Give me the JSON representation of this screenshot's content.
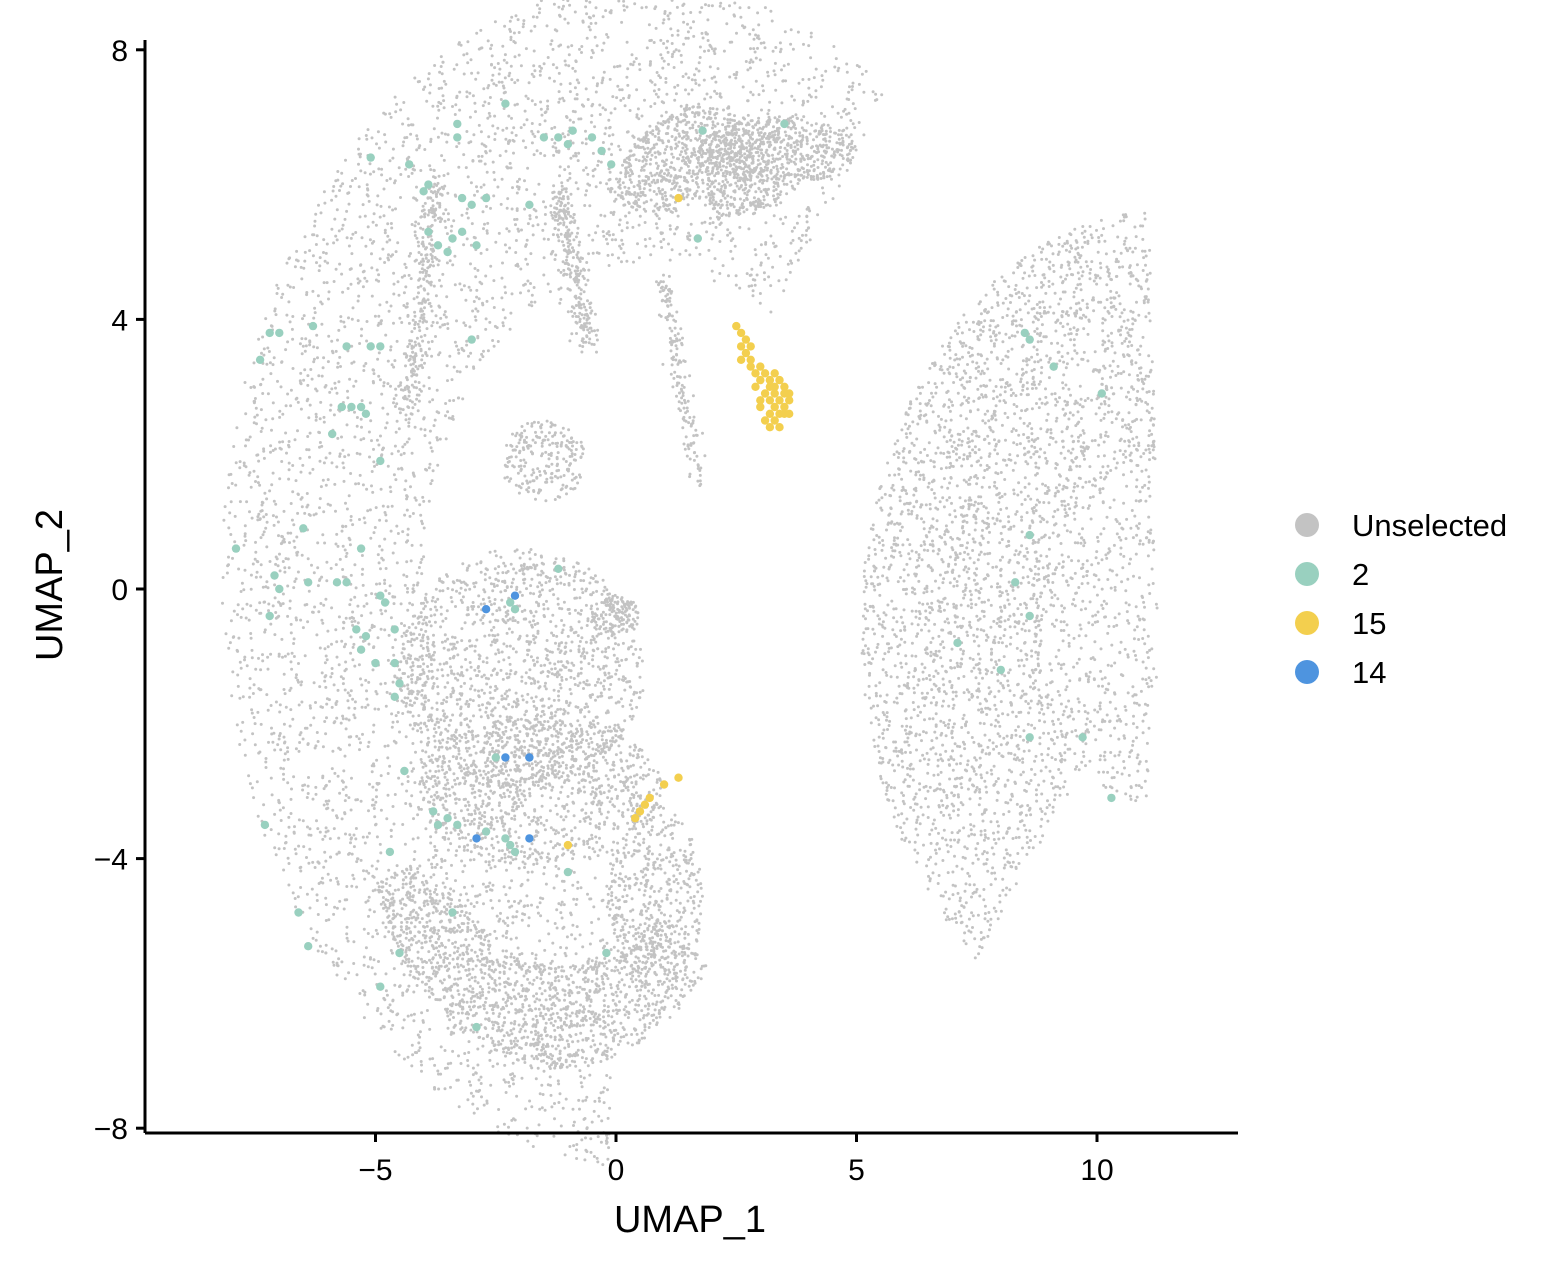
{
  "chart_data": {
    "type": "scatter",
    "title": "",
    "xlabel": "UMAP_1",
    "ylabel": "UMAP_2",
    "xlim": [
      -9.8,
      12.9
    ],
    "ylim": [
      -8,
      8.2
    ],
    "xticks": [
      -5,
      0,
      5,
      10
    ],
    "xtick_labels": [
      "−5",
      "0",
      "5",
      "10"
    ],
    "yticks": [
      -8,
      -4,
      0,
      4,
      8
    ],
    "ytick_labels": [
      "−8",
      "−4",
      "0",
      "4",
      "8"
    ],
    "grid": false,
    "legend_position": "right",
    "series": [
      {
        "name": "Unselected",
        "color": "#c3c3c3",
        "description_regions": [
          {
            "kind": "arc",
            "cx": 0.6,
            "cy": 0.2,
            "r_min": 4.6,
            "r_max": 8.8,
            "angle_from": 55,
            "angle_to": 265,
            "n": 4200
          },
          {
            "kind": "blob",
            "cx": -2.0,
            "cy": -1.2,
            "rx": 2.6,
            "ry": 1.8,
            "n": 1400
          },
          {
            "kind": "blob",
            "cx": -1.6,
            "cy": -3.0,
            "rx": 2.6,
            "ry": 1.1,
            "n": 900
          },
          {
            "kind": "crescent",
            "cx": -1.2,
            "cy": -3.0,
            "r_min": 2.6,
            "r_max": 4.1,
            "angle_from": 200,
            "angle_to": 320,
            "n": 1300
          },
          {
            "kind": "blob",
            "cx": 0.8,
            "cy": -4.6,
            "rx": 1.0,
            "ry": 1.4,
            "n": 450
          },
          {
            "kind": "arc",
            "cx": 1.7,
            "cy": 5.4,
            "r_min": 0.4,
            "r_max": 1.8,
            "angle_from": 10,
            "angle_to": 170,
            "n": 800
          },
          {
            "kind": "blob",
            "cx": 3.4,
            "cy": 6.5,
            "rx": 1.6,
            "ry": 0.5,
            "n": 500
          },
          {
            "kind": "blob",
            "cx": -1.5,
            "cy": 1.9,
            "rx": 0.9,
            "ry": 0.6,
            "n": 220
          },
          {
            "kind": "stripe",
            "x0": -1.2,
            "y0": 6.0,
            "x1": -0.6,
            "y1": 3.6,
            "w": 0.35,
            "n": 250
          },
          {
            "kind": "stripe",
            "x0": 1.0,
            "y0": 4.6,
            "x1": 1.7,
            "y1": 1.6,
            "w": 0.25,
            "n": 160
          },
          {
            "kind": "stripe",
            "x0": -3.7,
            "y0": 6.2,
            "x1": -4.3,
            "y1": 2.6,
            "w": 0.35,
            "n": 260
          },
          {
            "kind": "blob",
            "cx": 0.0,
            "cy": -0.4,
            "rx": 0.5,
            "ry": 0.3,
            "n": 120
          },
          {
            "kind": "fan",
            "cx": 11.3,
            "cy": -0.6,
            "r_min": 2.5,
            "r_max": 6.2,
            "angle_from": 92,
            "angle_to": 232,
            "n": 3000
          },
          {
            "kind": "fan",
            "cx": 11.3,
            "cy": -0.6,
            "r_min": 0.0,
            "r_max": 2.6,
            "angle_from": 95,
            "angle_to": 265,
            "n": 500
          }
        ]
      },
      {
        "name": "2",
        "color": "#99d0bf",
        "points": [
          [
            -5.1,
            6.4
          ],
          [
            -4.3,
            6.3
          ],
          [
            -3.3,
            6.9
          ],
          [
            -3.3,
            6.7
          ],
          [
            -2.3,
            7.2
          ],
          [
            -1.5,
            6.7
          ],
          [
            -1.2,
            6.7
          ],
          [
            -1.0,
            6.6
          ],
          [
            -0.9,
            6.8
          ],
          [
            -0.5,
            6.7
          ],
          [
            -0.3,
            6.5
          ],
          [
            -0.1,
            6.3
          ],
          [
            1.8,
            6.8
          ],
          [
            3.5,
            6.9
          ],
          [
            -4.0,
            5.9
          ],
          [
            -3.9,
            6.0
          ],
          [
            -3.2,
            5.8
          ],
          [
            -3.0,
            5.7
          ],
          [
            -2.7,
            5.8
          ],
          [
            -1.8,
            5.7
          ],
          [
            -3.9,
            5.3
          ],
          [
            -3.7,
            5.1
          ],
          [
            -3.4,
            5.2
          ],
          [
            -3.2,
            5.3
          ],
          [
            -3.5,
            5.0
          ],
          [
            -2.9,
            5.1
          ],
          [
            1.7,
            5.2
          ],
          [
            -7.2,
            3.8
          ],
          [
            -7.0,
            3.8
          ],
          [
            -6.3,
            3.9
          ],
          [
            -5.6,
            3.6
          ],
          [
            -5.1,
            3.6
          ],
          [
            -4.9,
            3.6
          ],
          [
            -3.0,
            3.7
          ],
          [
            -7.4,
            3.4
          ],
          [
            -5.7,
            2.7
          ],
          [
            -5.5,
            2.7
          ],
          [
            -5.3,
            2.7
          ],
          [
            -5.2,
            2.6
          ],
          [
            -5.9,
            2.3
          ],
          [
            -4.9,
            1.9
          ],
          [
            -6.5,
            0.9
          ],
          [
            -5.3,
            0.6
          ],
          [
            -7.9,
            0.6
          ],
          [
            -7.1,
            0.2
          ],
          [
            -7.0,
            0.0
          ],
          [
            -6.4,
            0.1
          ],
          [
            -5.8,
            0.1
          ],
          [
            -5.6,
            0.1
          ],
          [
            -4.9,
            -0.1
          ],
          [
            -4.8,
            -0.2
          ],
          [
            -7.2,
            -0.4
          ],
          [
            -5.4,
            -0.6
          ],
          [
            -5.2,
            -0.7
          ],
          [
            -4.6,
            -0.6
          ],
          [
            -5.3,
            -0.9
          ],
          [
            -5.0,
            -1.1
          ],
          [
            -4.6,
            -1.1
          ],
          [
            -4.5,
            -1.4
          ],
          [
            -4.6,
            -1.6
          ],
          [
            -1.2,
            0.3
          ],
          [
            -2.2,
            -0.2
          ],
          [
            -2.1,
            -0.3
          ],
          [
            8.5,
            3.8
          ],
          [
            8.6,
            3.7
          ],
          [
            9.1,
            3.3
          ],
          [
            10.1,
            2.9
          ],
          [
            8.6,
            0.8
          ],
          [
            8.3,
            0.1
          ],
          [
            8.6,
            -0.4
          ],
          [
            7.1,
            -0.8
          ],
          [
            8.0,
            -1.2
          ],
          [
            8.6,
            -2.2
          ],
          [
            9.7,
            -2.2
          ],
          [
            10.3,
            -3.1
          ],
          [
            -4.4,
            -2.7
          ],
          [
            -2.5,
            -2.5
          ],
          [
            -3.8,
            -3.3
          ],
          [
            -3.5,
            -3.4
          ],
          [
            -3.3,
            -3.5
          ],
          [
            -2.7,
            -3.6
          ],
          [
            -2.3,
            -3.7
          ],
          [
            -2.2,
            -3.8
          ],
          [
            -2.1,
            -3.9
          ],
          [
            -3.7,
            -3.5
          ],
          [
            -4.7,
            -3.9
          ],
          [
            -1.0,
            -4.2
          ],
          [
            -7.3,
            -3.5
          ],
          [
            -6.6,
            -4.8
          ],
          [
            -6.4,
            -5.3
          ],
          [
            -4.5,
            -5.4
          ],
          [
            -3.4,
            -4.8
          ],
          [
            -4.9,
            -5.9
          ],
          [
            -2.9,
            -6.5
          ],
          [
            -0.2,
            -5.4
          ]
        ]
      },
      {
        "name": "15",
        "color": "#f3cf4e",
        "points": [
          [
            1.3,
            5.8
          ],
          [
            2.5,
            3.9
          ],
          [
            2.6,
            3.8
          ],
          [
            2.7,
            3.7
          ],
          [
            2.6,
            3.6
          ],
          [
            2.7,
            3.5
          ],
          [
            2.8,
            3.4
          ],
          [
            2.8,
            3.3
          ],
          [
            2.9,
            3.2
          ],
          [
            3.0,
            3.1
          ],
          [
            3.1,
            3.2
          ],
          [
            3.2,
            3.1
          ],
          [
            3.3,
            3.0
          ],
          [
            3.1,
            2.9
          ],
          [
            3.3,
            2.9
          ],
          [
            3.4,
            2.8
          ],
          [
            3.2,
            2.8
          ],
          [
            3.5,
            2.9
          ],
          [
            3.6,
            2.8
          ],
          [
            3.5,
            2.7
          ],
          [
            3.3,
            2.7
          ],
          [
            3.4,
            2.6
          ],
          [
            3.2,
            2.6
          ],
          [
            3.5,
            2.6
          ],
          [
            3.0,
            2.7
          ],
          [
            3.3,
            2.5
          ],
          [
            3.1,
            2.5
          ],
          [
            3.4,
            2.4
          ],
          [
            3.2,
            2.4
          ],
          [
            3.6,
            2.6
          ],
          [
            2.9,
            3.0
          ],
          [
            3.0,
            3.3
          ],
          [
            2.6,
            3.4
          ],
          [
            3.5,
            3.0
          ],
          [
            3.6,
            2.9
          ],
          [
            3.4,
            3.1
          ],
          [
            3.2,
            3.0
          ],
          [
            2.8,
            3.6
          ],
          [
            3.0,
            2.8
          ],
          [
            3.3,
            3.2
          ],
          [
            1.3,
            -2.8
          ],
          [
            1.0,
            -2.9
          ],
          [
            0.7,
            -3.1
          ],
          [
            0.6,
            -3.2
          ],
          [
            0.5,
            -3.3
          ],
          [
            0.4,
            -3.4
          ],
          [
            -1.0,
            -3.8
          ]
        ]
      },
      {
        "name": "14",
        "color": "#4e94df",
        "points": [
          [
            -2.1,
            -0.1
          ],
          [
            -2.7,
            -0.3
          ],
          [
            -2.3,
            -2.5
          ],
          [
            -1.8,
            -2.5
          ],
          [
            -2.9,
            -3.7
          ],
          [
            -1.8,
            -3.7
          ]
        ]
      }
    ]
  }
}
